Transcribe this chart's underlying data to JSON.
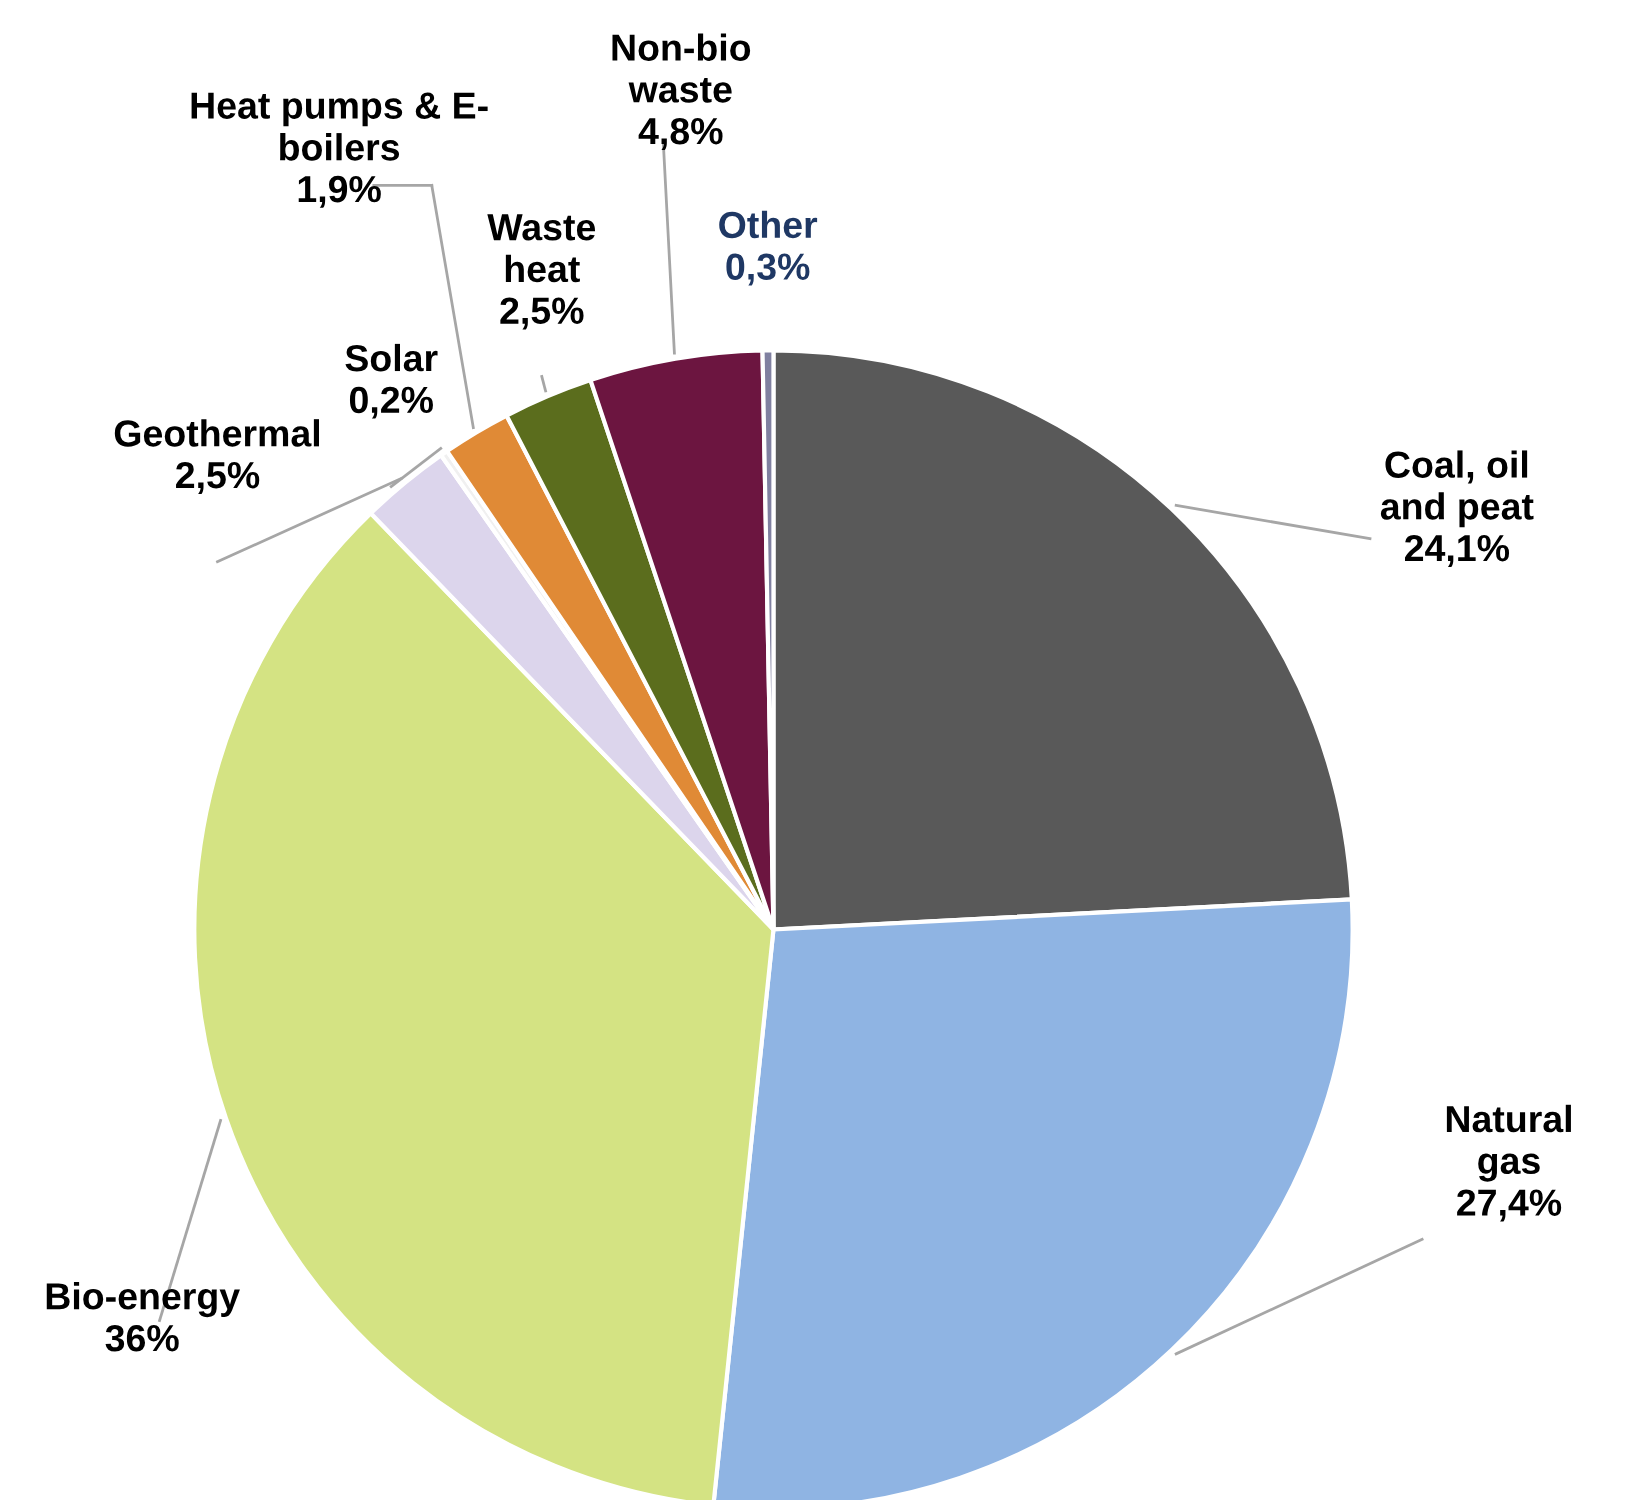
{
  "chart_data": {
    "type": "pie",
    "categories": [
      "Coal, oil\nand peat",
      "Natural\ngas",
      "Bio-energy",
      "Geothermal",
      "Solar",
      "Heat pumps & E-\nboilers",
      "Waste\nheat",
      "Non-bio\nwaste",
      "Other"
    ],
    "values": [
      24.1,
      27.4,
      36,
      2.5,
      0.2,
      1.9,
      2.5,
      4.8,
      0.3
    ],
    "value_labels": [
      "24,1%",
      "27,4%",
      "36%",
      "2,5%",
      "0,2%",
      "1,9%",
      "2,5%",
      "4,8%",
      "0,3%"
    ],
    "colors": [
      "#595959",
      "#8fb4e3",
      "#d4e383",
      "#dcd5ec",
      "#f0f0f0",
      "#e08a36",
      "#5b6d1d",
      "#6c1540",
      "#8080a0"
    ]
  }
}
